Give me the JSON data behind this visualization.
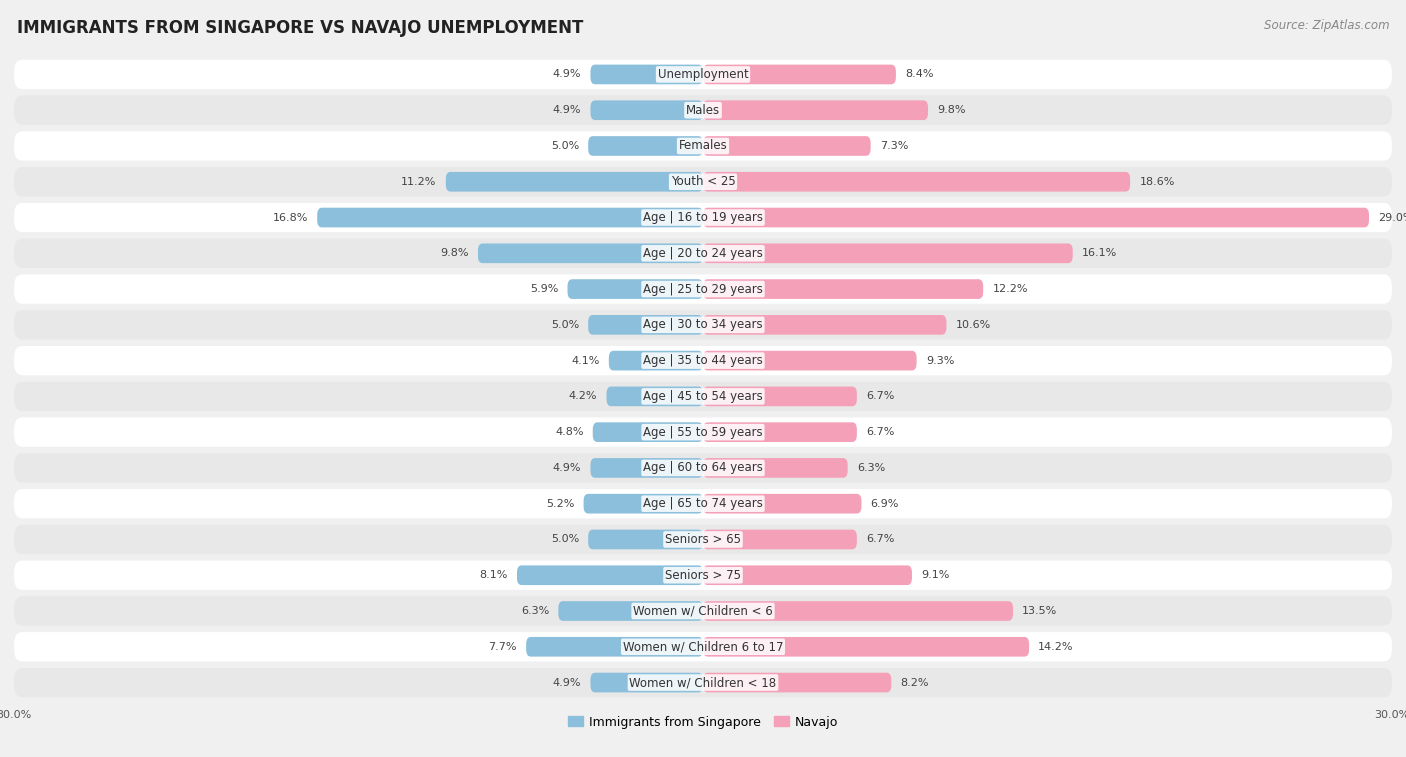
{
  "title": "IMMIGRANTS FROM SINGAPORE VS NAVAJO UNEMPLOYMENT",
  "source": "Source: ZipAtlas.com",
  "categories": [
    "Unemployment",
    "Males",
    "Females",
    "Youth < 25",
    "Age | 16 to 19 years",
    "Age | 20 to 24 years",
    "Age | 25 to 29 years",
    "Age | 30 to 34 years",
    "Age | 35 to 44 years",
    "Age | 45 to 54 years",
    "Age | 55 to 59 years",
    "Age | 60 to 64 years",
    "Age | 65 to 74 years",
    "Seniors > 65",
    "Seniors > 75",
    "Women w/ Children < 6",
    "Women w/ Children 6 to 17",
    "Women w/ Children < 18"
  ],
  "singapore_values": [
    4.9,
    4.9,
    5.0,
    11.2,
    16.8,
    9.8,
    5.9,
    5.0,
    4.1,
    4.2,
    4.8,
    4.9,
    5.2,
    5.0,
    8.1,
    6.3,
    7.7,
    4.9
  ],
  "navajo_values": [
    8.4,
    9.8,
    7.3,
    18.6,
    29.0,
    16.1,
    12.2,
    10.6,
    9.3,
    6.7,
    6.7,
    6.3,
    6.9,
    6.7,
    9.1,
    13.5,
    14.2,
    8.2
  ],
  "singapore_color": "#8bbfdb",
  "navajo_color": "#f4a0b8",
  "row_bg_color": "#e8e8e8",
  "row_bg_light": "#f5f5f5",
  "singapore_label": "Immigrants from Singapore",
  "navajo_label": "Navajo",
  "axis_max": 30.0,
  "bg_color": "#f0f0f0",
  "title_fontsize": 12,
  "source_fontsize": 8.5,
  "label_fontsize": 8.5,
  "value_fontsize": 8.0,
  "legend_fontsize": 9
}
